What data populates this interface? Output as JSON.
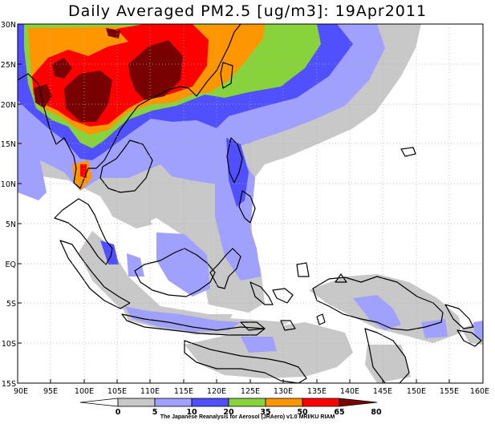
{
  "title": "Daily Averaged PM2.5 [ug/m3]: 19Apr2011",
  "map": {
    "lon_range": [
      90,
      160
    ],
    "lat_range": [
      -15,
      30
    ],
    "lon_labels": [
      "90E",
      "95E",
      "100E",
      "105E",
      "110E",
      "115E",
      "120E",
      "125E",
      "130E",
      "135E",
      "140E",
      "145E",
      "150E",
      "155E",
      "160E"
    ],
    "lat_labels": [
      "30N",
      "25N",
      "20N",
      "15N",
      "10N",
      "5N",
      "EQ",
      "5S",
      "10S",
      "15S"
    ]
  },
  "colorbar": {
    "levels": [
      "0",
      "5",
      "10",
      "20",
      "35",
      "50",
      "65",
      "80"
    ],
    "colors": [
      "#ffffff",
      "#c8c8c8",
      "#a0a0ff",
      "#5050ff",
      "#88d23c",
      "#ff9600",
      "#ff0000",
      "#780000"
    ]
  },
  "credit": "The Japanese Reanalysis for Aerosol (JRAero) v1.0 MRI/KU RIAM"
}
